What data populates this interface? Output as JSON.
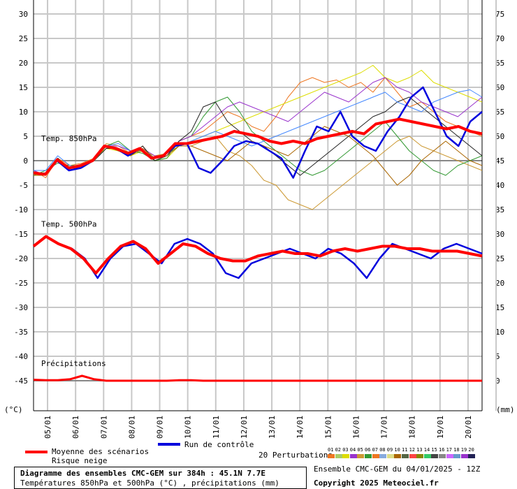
{
  "chart_data": {
    "type": "line",
    "title": "Diagramme des ensembles CMC-GEM sur 384h : 45.1N 7.7E",
    "subtitle": "Températures 850hPa et 500hPa (°C) , précipitations (mm)",
    "left_axis": {
      "label": "(°C)",
      "range": [
        -50,
        32
      ],
      "ticks": [
        30,
        25,
        20,
        15,
        10,
        5,
        0,
        -5,
        -10,
        -15,
        -20,
        -25,
        -30,
        -35,
        -40,
        -45
      ]
    },
    "right_axis": {
      "label": "(mm)",
      "ticks": [
        75,
        70,
        65,
        60,
        55,
        50,
        45,
        40,
        35,
        30,
        25,
        20,
        15,
        10,
        5,
        0
      ]
    },
    "x_axis": {
      "range_days": [
        0,
        16
      ],
      "dates": [
        "05/01",
        "06/01",
        "07/01",
        "08/01",
        "09/01",
        "10/01",
        "11/01",
        "12/01",
        "13/01",
        "14/01",
        "15/01",
        "16/01",
        "17/01",
        "18/01",
        "19/01",
        "20/01"
      ]
    },
    "panel_labels": [
      "Temp. 850hPa",
      "Temp. 500hPa",
      "Précipitations"
    ],
    "series": [
      {
        "name": "Moyenne des scénarios",
        "panel": "t850",
        "color": "#ff0000",
        "values": [
          -2.5,
          -2.8,
          0.2,
          -1.5,
          -1,
          0,
          3,
          2.5,
          1.5,
          2.5,
          0.5,
          1,
          3.5,
          3.5,
          4,
          4.5,
          5,
          6,
          5.5,
          5,
          4,
          3.5,
          4,
          3.5,
          4.5,
          5,
          5.5,
          6,
          5.5,
          7.5,
          8,
          8.5,
          8,
          7.5,
          7,
          6.5,
          7,
          6,
          5.5
        ]
      },
      {
        "name": "Run de contrôle",
        "panel": "t850",
        "color": "#0000dd",
        "values": [
          -2.5,
          -2.8,
          0,
          -2,
          -1.5,
          0,
          3,
          2.5,
          1,
          2.5,
          0.5,
          1,
          3,
          3.5,
          -1.5,
          -2.5,
          0,
          3,
          4,
          3.5,
          2,
          0.5,
          -3.5,
          2,
          7,
          6,
          10,
          5,
          3,
          2,
          6,
          9,
          13,
          15,
          10,
          5,
          3,
          8,
          10
        ]
      },
      {
        "name": "Moyenne des scénarios",
        "panel": "t500",
        "color": "#ff0000",
        "values": [
          -17.5,
          -15.5,
          -17,
          -18,
          -20,
          -23,
          -20,
          -17.5,
          -16.5,
          -18,
          -21,
          -19,
          -17,
          -17.5,
          -19,
          -20,
          -20.5,
          -20.5,
          -19.5,
          -19,
          -18.5,
          -19,
          -19,
          -19.5,
          -18.5,
          -18,
          -18.5,
          -18,
          -17.5,
          -17.5,
          -18,
          -18,
          -18.5,
          -18.5,
          -18.5,
          -19,
          -19.5
        ]
      },
      {
        "name": "Run de contrôle",
        "panel": "t500",
        "color": "#0000dd",
        "values": [
          -17.5,
          -15.5,
          -17,
          -18,
          -20,
          -24,
          -20,
          -17.5,
          -17,
          -19,
          -21,
          -17,
          -16,
          -17,
          -19,
          -23,
          -24,
          -21,
          -20,
          -19,
          -18,
          -19,
          -20,
          -18,
          -19,
          -21,
          -24,
          -20,
          -17,
          -18,
          -19,
          -20,
          -18,
          -17,
          -18,
          -19
        ]
      }
    ],
    "ensemble_members": [
      {
        "panel": "t850",
        "color": "#ee7722",
        "values": [
          -2,
          -3.5,
          0.5,
          -1,
          -0.5,
          0.5,
          3,
          2,
          1,
          3,
          0,
          1,
          4,
          5,
          6,
          8,
          10,
          9,
          7,
          6,
          9,
          13,
          16,
          17,
          16,
          16.5,
          15,
          16,
          14,
          17,
          14,
          11,
          12,
          10,
          8,
          7,
          6,
          5
        ]
      },
      {
        "panel": "t850",
        "color": "#cc9933",
        "values": [
          -2.5,
          -3,
          0.5,
          -1.5,
          -1,
          0,
          3.5,
          3,
          1.5,
          2,
          1,
          1.5,
          3,
          3,
          4,
          5,
          2,
          1,
          -1,
          -4,
          -5,
          -8,
          -9,
          -10,
          -8,
          -6,
          -4,
          -2,
          0,
          2,
          4,
          5,
          3,
          2,
          1,
          0,
          -1,
          -2
        ]
      },
      {
        "panel": "t850",
        "color": "#dddd00",
        "values": [
          -3,
          -2.5,
          0,
          -2,
          -1,
          0.5,
          2.5,
          2,
          1,
          2,
          0,
          0.5,
          3,
          4,
          5,
          6,
          7,
          8,
          9,
          10,
          11,
          12,
          13,
          14,
          15,
          16,
          17,
          18,
          19.5,
          17,
          16,
          17,
          18.5,
          16,
          15,
          14,
          13,
          12
        ]
      },
      {
        "panel": "t850",
        "color": "#339933",
        "values": [
          -3,
          -2,
          -0.5,
          -1,
          -1,
          0,
          3,
          4,
          2,
          1.5,
          0,
          0.5,
          4,
          5,
          9,
          12,
          13,
          10,
          6,
          4,
          2,
          0,
          -2,
          -3,
          -2,
          0,
          2,
          4,
          6,
          8,
          5,
          2,
          0,
          -2,
          -3,
          -1,
          0,
          1
        ]
      },
      {
        "panel": "t850",
        "color": "#9933cc",
        "values": [
          -2,
          -3,
          0,
          -1.5,
          -1,
          0,
          3,
          3,
          2,
          2.5,
          1,
          1,
          4,
          5,
          7,
          9,
          11,
          12,
          11,
          10,
          9,
          8,
          10,
          12,
          14,
          13,
          12,
          14,
          16,
          17,
          15,
          14,
          12,
          11,
          10,
          9,
          11,
          13
        ]
      },
      {
        "panel": "t850",
        "color": "#222222",
        "values": [
          -2.5,
          -2.5,
          0.5,
          -2,
          -1.5,
          0,
          2.5,
          2.5,
          1,
          3,
          0,
          1,
          4,
          6,
          11,
          12,
          8,
          6,
          4,
          3,
          1,
          -1,
          -3,
          -1,
          1,
          3,
          5,
          7,
          9,
          10,
          12,
          13,
          11,
          9,
          7,
          5,
          3,
          1
        ]
      },
      {
        "panel": "t850",
        "color": "#4488ff",
        "values": [
          -2,
          -2,
          1,
          -1,
          -1.5,
          0,
          3,
          3.5,
          2,
          2,
          0.5,
          1,
          3,
          4,
          5,
          6,
          5,
          4,
          3,
          4,
          5,
          6,
          7,
          8,
          9,
          10,
          11,
          12,
          13,
          14,
          12,
          11,
          10,
          12,
          13,
          14,
          14.5,
          13
        ]
      },
      {
        "panel": "t850",
        "color": "#aa6600",
        "values": [
          -3,
          -3,
          0,
          -2,
          -1,
          0,
          3,
          2,
          1,
          2.5,
          0.5,
          1,
          3,
          3,
          2,
          1,
          0,
          2,
          4,
          3,
          2,
          1,
          3,
          5,
          7,
          6,
          5,
          3,
          1,
          -2,
          -5,
          -3,
          0,
          2,
          4,
          2,
          0,
          -1
        ]
      }
    ],
    "precip_series": [
      {
        "name": "Moyenne des scénarios",
        "color": "#ff0000",
        "values": [
          0.2,
          0.1,
          0.1,
          0.3,
          1,
          0.3,
          0,
          0,
          0,
          0,
          0,
          0,
          0.1,
          0.1,
          0,
          0,
          0,
          0,
          0,
          0,
          0,
          0,
          0,
          0,
          0,
          0,
          0,
          0,
          0,
          0,
          0,
          0,
          0,
          0,
          0,
          0,
          0,
          0
        ]
      }
    ],
    "legend": {
      "mean": "Moyenne des scénarios",
      "snow": "Risque neige",
      "control": "Run de contrôle",
      "perturbations": "20 Perturbations",
      "member_numbers": [
        "01",
        "02",
        "03",
        "04",
        "05",
        "06",
        "07",
        "08",
        "09",
        "10",
        "11",
        "12",
        "13",
        "14",
        "15",
        "16",
        "17",
        "18",
        "19",
        "20"
      ],
      "member_colors": [
        "#ee7722",
        "#aacc66",
        "#dddd00",
        "#9933cc",
        "#cc9933",
        "#339933",
        "#ee7722",
        "#88aadd",
        "#dddd88",
        "#aa6600",
        "#556644",
        "#ff4444",
        "#888800",
        "#33cc66",
        "#444444",
        "#888888",
        "#cc66ff",
        "#6699cc",
        "#9933cc",
        "#222255"
      ]
    },
    "footer": {
      "ensemble_run": "Ensemble CMC-GEM du 04/01/2025 - 12Z",
      "copyright": "Copyright 2025 Meteociel.fr"
    }
  }
}
